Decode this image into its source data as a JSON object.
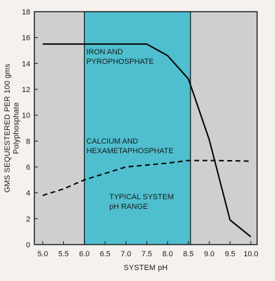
{
  "chart_data": {
    "type": "line",
    "title": "",
    "xlabel": "SYSTEM pH",
    "ylabel_line1": "GMS SEQUESTERED PER 100 gms",
    "ylabel_line2": "Polyphosphate",
    "xlim": [
      4.8,
      10.15
    ],
    "ylim": [
      0,
      18
    ],
    "x_ticks": [
      5.0,
      5.5,
      6.0,
      6.5,
      7.0,
      7.5,
      8.0,
      8.5,
      9.0,
      9.5,
      10.0
    ],
    "x_tick_labels": [
      "5.0",
      "5.5",
      "6.0",
      "6.5",
      "7.0",
      "7.5",
      "8.0",
      "8.5",
      "9.0",
      "9.5",
      "10.0"
    ],
    "y_ticks": [
      0,
      2,
      4,
      6,
      8,
      10,
      12,
      14,
      16,
      18
    ],
    "y_tick_labels": [
      "0",
      "2",
      "4",
      "6",
      "8",
      "10",
      "12",
      "14",
      "16",
      "18"
    ],
    "grid": false,
    "legend": "none",
    "typical_range": {
      "from": 6.0,
      "to": 8.55,
      "color": "#4fbfcf"
    },
    "outside_range_color": "#cfcfcf",
    "series": [
      {
        "name": "IRON AND PYROPHOSPHATE",
        "style": "solid",
        "x": [
          5.0,
          7.5,
          8.0,
          8.5,
          9.0,
          9.5,
          10.0
        ],
        "y": [
          15.5,
          15.5,
          14.6,
          12.8,
          8.1,
          1.9,
          0.6
        ]
      },
      {
        "name": "CALCIUM AND HEXAMETAPHOSPHATE",
        "style": "dashed",
        "x": [
          5.0,
          5.5,
          6.0,
          6.5,
          7.0,
          7.5,
          8.0,
          8.5,
          9.0,
          9.5,
          10.0
        ],
        "y": [
          3.8,
          4.3,
          5.0,
          5.5,
          6.0,
          6.15,
          6.3,
          6.5,
          6.5,
          6.48,
          6.45
        ]
      }
    ],
    "annotations": [
      {
        "lines": [
          "IRON AND",
          "PYROPHOSPHATE"
        ],
        "x": 6.05,
        "y": 14.7
      },
      {
        "lines": [
          "CALCIUM AND",
          "HEXAMETAPHOSPHATE"
        ],
        "x": 6.05,
        "y": 7.8
      },
      {
        "lines": [
          "TYPICAL SYSTEM",
          "pH RANGE"
        ],
        "x": 6.6,
        "y": 3.5
      }
    ]
  }
}
